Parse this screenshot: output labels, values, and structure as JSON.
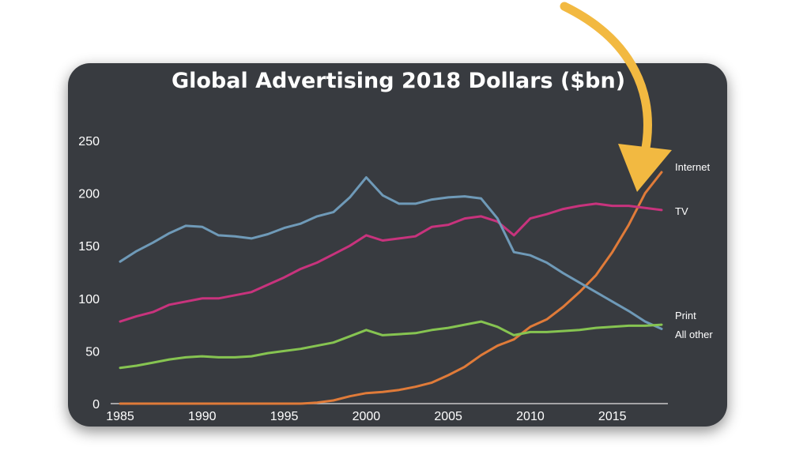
{
  "chart_data": {
    "type": "line",
    "title": "Global Advertising 2018 Dollars ($bn)",
    "xlabel": "",
    "ylabel": "",
    "xlim": [
      1985,
      2018
    ],
    "ylim": [
      0,
      250
    ],
    "x_ticks": [
      "1985",
      "1990",
      "1995",
      "2000",
      "2005",
      "2010",
      "2015"
    ],
    "y_ticks": [
      "0",
      "50",
      "100",
      "150",
      "200",
      "250"
    ],
    "grid": false,
    "legend": "direct labels at right end of lines",
    "x": [
      1985,
      1986,
      1987,
      1988,
      1989,
      1990,
      1991,
      1992,
      1993,
      1994,
      1995,
      1996,
      1997,
      1998,
      1999,
      2000,
      2001,
      2002,
      2003,
      2004,
      2005,
      2006,
      2007,
      2008,
      2009,
      2010,
      2011,
      2012,
      2013,
      2014,
      2015,
      2016,
      2017,
      2018
    ],
    "series": [
      {
        "name": "Internet",
        "color": "#e07b39",
        "values": [
          0,
          0,
          0,
          0,
          0,
          0,
          0,
          0,
          0,
          0,
          0,
          0,
          1,
          3,
          7,
          10,
          11,
          13,
          16,
          20,
          27,
          35,
          46,
          55,
          61,
          73,
          80,
          92,
          106,
          122,
          144,
          170,
          200,
          220
        ]
      },
      {
        "name": "TV",
        "color": "#c8337d",
        "values": [
          78,
          83,
          87,
          94,
          97,
          100,
          100,
          103,
          106,
          113,
          120,
          128,
          134,
          142,
          150,
          160,
          155,
          157,
          159,
          168,
          170,
          176,
          178,
          173,
          160,
          176,
          180,
          185,
          188,
          190,
          188,
          188,
          186,
          184
        ]
      },
      {
        "name": "Print",
        "color": "#6f9ab8",
        "values": [
          135,
          145,
          153,
          162,
          169,
          168,
          160,
          159,
          157,
          161,
          167,
          171,
          178,
          182,
          196,
          215,
          198,
          190,
          190,
          194,
          196,
          197,
          195,
          176,
          144,
          141,
          134,
          124,
          115,
          106,
          97,
          88,
          78,
          71
        ]
      },
      {
        "name": "All other",
        "color": "#86c451",
        "values": [
          34,
          36,
          39,
          42,
          44,
          45,
          44,
          44,
          45,
          48,
          50,
          52,
          55,
          58,
          64,
          70,
          65,
          66,
          67,
          70,
          72,
          75,
          78,
          73,
          65,
          68,
          68,
          69,
          70,
          72,
          73,
          74,
          74,
          75
        ]
      }
    ]
  },
  "annotation": {
    "arrow_color": "#f2b941"
  }
}
